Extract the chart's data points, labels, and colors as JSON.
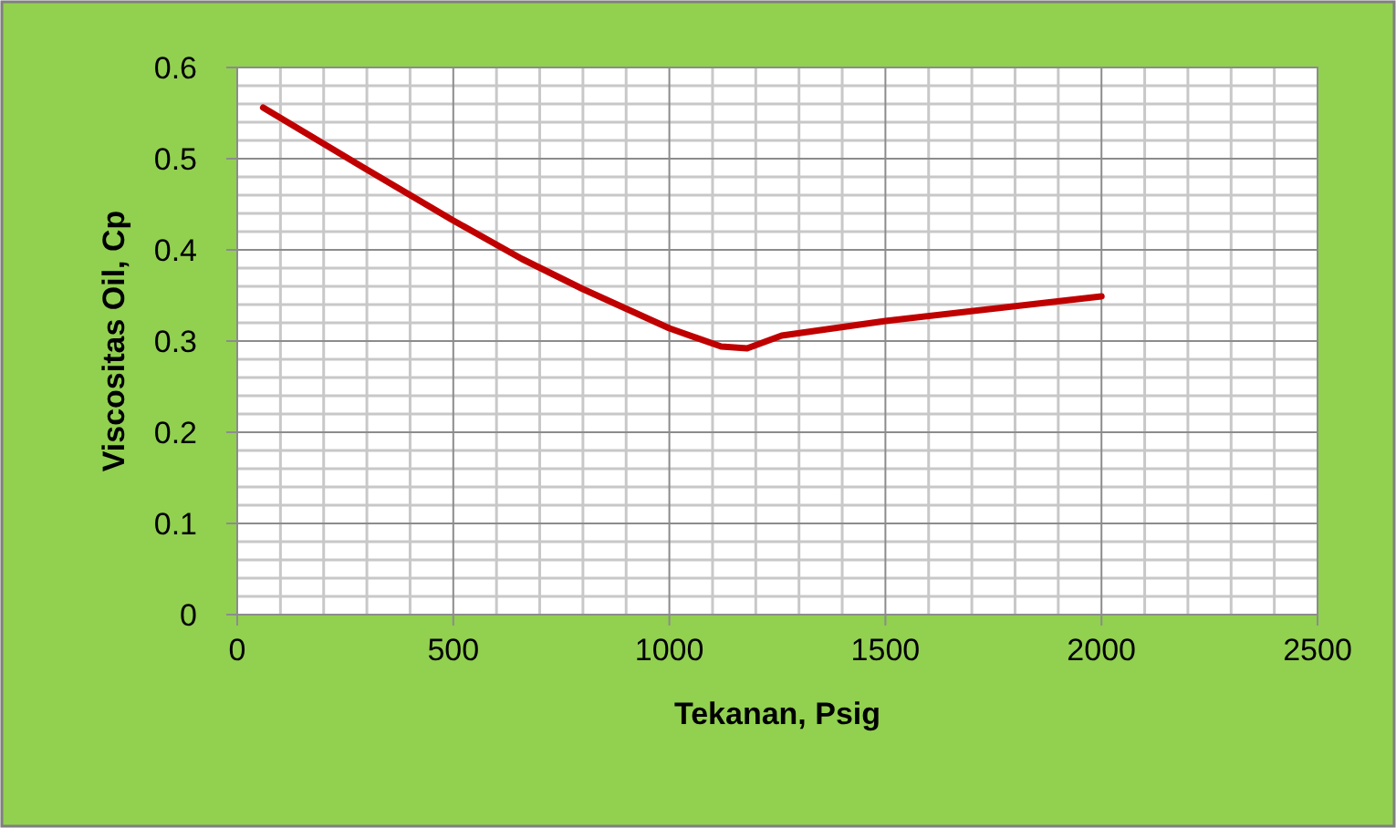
{
  "chart_data": {
    "type": "line",
    "xlabel": "Tekanan, Psig",
    "ylabel": "Viscositas Oil, Cp",
    "x": [
      60,
      293,
      497,
      659,
      800,
      1000,
      1120,
      1180,
      1260,
      1500,
      2000
    ],
    "series": [
      {
        "color": "#c00000",
        "values": [
          0.556,
          0.49,
          0.433,
          0.39,
          0.357,
          0.314,
          0.294,
          0.292,
          0.306,
          0.322,
          0.349
        ]
      }
    ],
    "xlim": [
      0,
      2500
    ],
    "xticks": [
      0,
      500,
      1000,
      1500,
      2000,
      2500
    ],
    "ylim": [
      0,
      0.6
    ],
    "yticks": [
      0,
      0.1,
      0.2,
      0.3,
      0.4,
      0.5,
      0.6
    ],
    "grid": true,
    "marker": "none",
    "line_style": "solid"
  }
}
